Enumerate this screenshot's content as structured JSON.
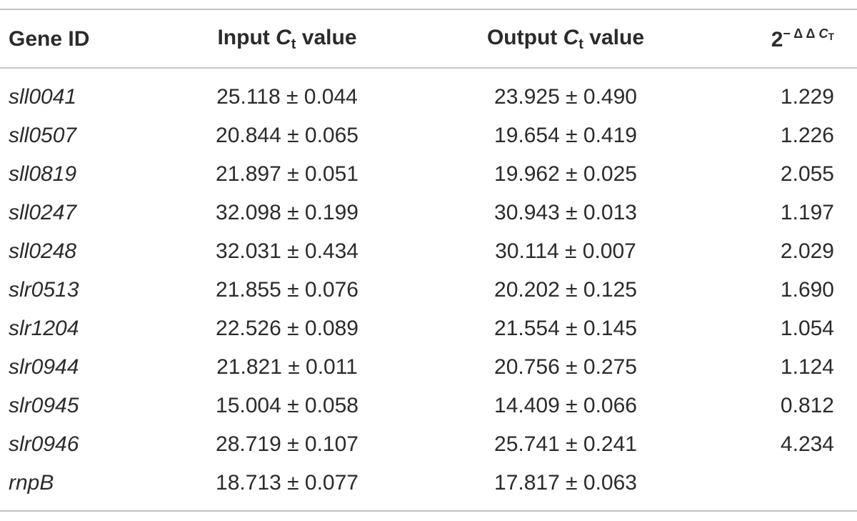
{
  "table": {
    "header": [
      {
        "text": "Gene ID"
      },
      {
        "before": "Input ",
        "symbol": "C",
        "sub": "t",
        "after": " value"
      },
      {
        "before": "Output ",
        "symbol": "C",
        "sub": "t",
        "after": " value"
      },
      {
        "base": "2",
        "sup": "− Δ Δ ",
        "sup_symbol": "C",
        "sup_sub": "T"
      }
    ],
    "rows": [
      [
        "sll0041",
        "25.118 ± 0.044",
        "23.925 ± 0.490",
        "1.229"
      ],
      [
        "sll0507",
        "20.844 ± 0.065",
        "19.654 ± 0.419",
        "1.226"
      ],
      [
        "sll0819",
        "21.897 ± 0.051",
        "19.962 ± 0.025",
        "2.055"
      ],
      [
        "sll0247",
        "32.098 ± 0.199",
        "30.943 ± 0.013",
        "1.197"
      ],
      [
        "sll0248",
        "32.031 ± 0.434",
        "30.114 ± 0.007",
        "2.029"
      ],
      [
        "slr0513",
        "21.855 ± 0.076",
        "20.202 ± 0.125",
        "1.690"
      ],
      [
        "slr1204",
        "22.526 ± 0.089",
        "21.554 ± 0.145",
        "1.054"
      ],
      [
        "slr0944",
        "21.821 ± 0.011",
        "20.756 ± 0.275",
        "1.124"
      ],
      [
        "slr0945",
        "15.004 ± 0.058",
        "14.409 ± 0.066",
        "0.812"
      ],
      [
        "slr0946",
        "28.719 ± 0.107",
        "25.741 ± 0.241",
        "4.234"
      ],
      [
        "rnpB",
        "18.713 ± 0.077",
        "17.817 ± 0.063",
        null
      ]
    ]
  }
}
